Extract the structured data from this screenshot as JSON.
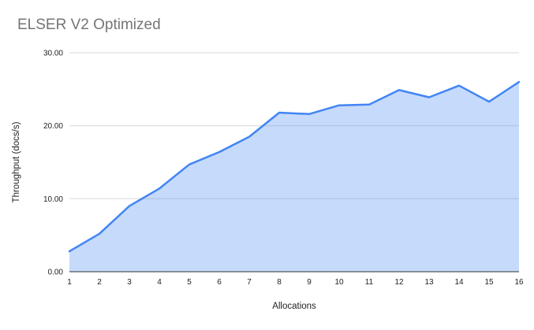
{
  "chart_data": {
    "type": "area",
    "title": "ELSER V2 Optimized",
    "xlabel": "Allocations",
    "ylabel": "Throughput (docs/s)",
    "x": [
      1,
      2,
      3,
      4,
      5,
      6,
      7,
      8,
      9,
      10,
      11,
      12,
      13,
      14,
      15,
      16
    ],
    "series": [
      {
        "name": "Throughput (docs/s)",
        "values": [
          2.8,
          5.2,
          9.0,
          11.4,
          14.7,
          16.4,
          18.5,
          21.8,
          21.6,
          22.8,
          22.9,
          24.9,
          23.9,
          25.5,
          23.3,
          26.0
        ]
      }
    ],
    "xlim": [
      1,
      16
    ],
    "ylim": [
      0,
      30
    ],
    "x_ticks": {
      "values": [
        1,
        2,
        3,
        4,
        5,
        6,
        7,
        8,
        9,
        10,
        11,
        12,
        13,
        14,
        15,
        16
      ],
      "labels": [
        "1",
        "2",
        "3",
        "4",
        "5",
        "6",
        "7",
        "8",
        "9",
        "10",
        "11",
        "12",
        "13",
        "14",
        "15",
        "16"
      ]
    },
    "y_ticks": {
      "values": [
        0,
        10,
        20,
        30
      ],
      "labels": [
        "0.00",
        "10.00",
        "20.00",
        "30.00"
      ]
    },
    "grid": "horizontal",
    "legend": "none",
    "colors": {
      "line": "#4285f4",
      "fill": "rgba(66,133,244,0.30)",
      "gridline": "#d9d9d9",
      "axis_line": "#333333",
      "title": "#757575",
      "tick_label": "#1f1f1f",
      "axis_title": "#1f1f1f",
      "background": "#ffffff"
    }
  }
}
